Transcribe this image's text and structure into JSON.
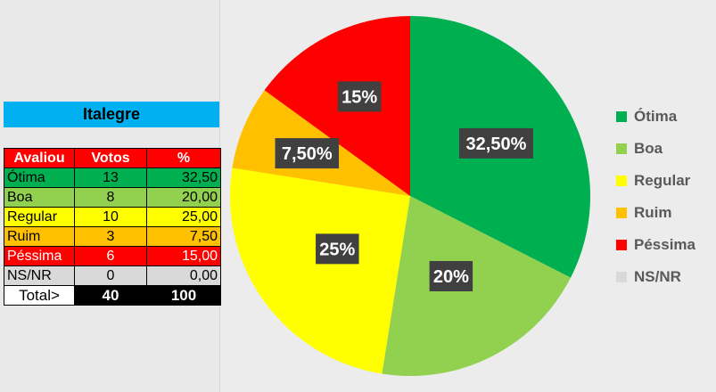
{
  "table": {
    "title": "Italegre",
    "headers": [
      "Avaliou",
      "Votos",
      "%"
    ],
    "rows": [
      {
        "label": "Ótima",
        "votes": "13",
        "pct": "32,50",
        "bg": "#00b050",
        "fg": "#000000"
      },
      {
        "label": "Boa",
        "votes": "8",
        "pct": "20,00",
        "bg": "#92d050",
        "fg": "#000000"
      },
      {
        "label": "Regular",
        "votes": "10",
        "pct": "25,00",
        "bg": "#ffff00",
        "fg": "#000000"
      },
      {
        "label": "Ruim",
        "votes": "3",
        "pct": "7,50",
        "bg": "#ffc000",
        "fg": "#000000"
      },
      {
        "label": "Péssima",
        "votes": "6",
        "pct": "15,00",
        "bg": "#ff0000",
        "fg": "#ffffff"
      },
      {
        "label": "NS/NR",
        "votes": "0",
        "pct": "0,00",
        "bg": "#d9d9d9",
        "fg": "#000000"
      }
    ],
    "total": {
      "label": "Total>",
      "votes": "40",
      "pct": "100"
    }
  },
  "chart_data": {
    "type": "pie",
    "legend_position": "right",
    "slices": [
      {
        "name": "Ótima",
        "value": 32.5,
        "label": "32,50%",
        "color": "#00b050"
      },
      {
        "name": "Boa",
        "value": 20,
        "label": "20%",
        "color": "#92d050"
      },
      {
        "name": "Regular",
        "value": 25,
        "label": "25%",
        "color": "#ffff00"
      },
      {
        "name": "Ruim",
        "value": 7.5,
        "label": "7,50%",
        "color": "#ffc000"
      },
      {
        "name": "Péssima",
        "value": 15,
        "label": "15%",
        "color": "#ff0000"
      },
      {
        "name": "NS/NR",
        "value": 0,
        "label": "",
        "color": "#d9d9d9"
      }
    ]
  }
}
